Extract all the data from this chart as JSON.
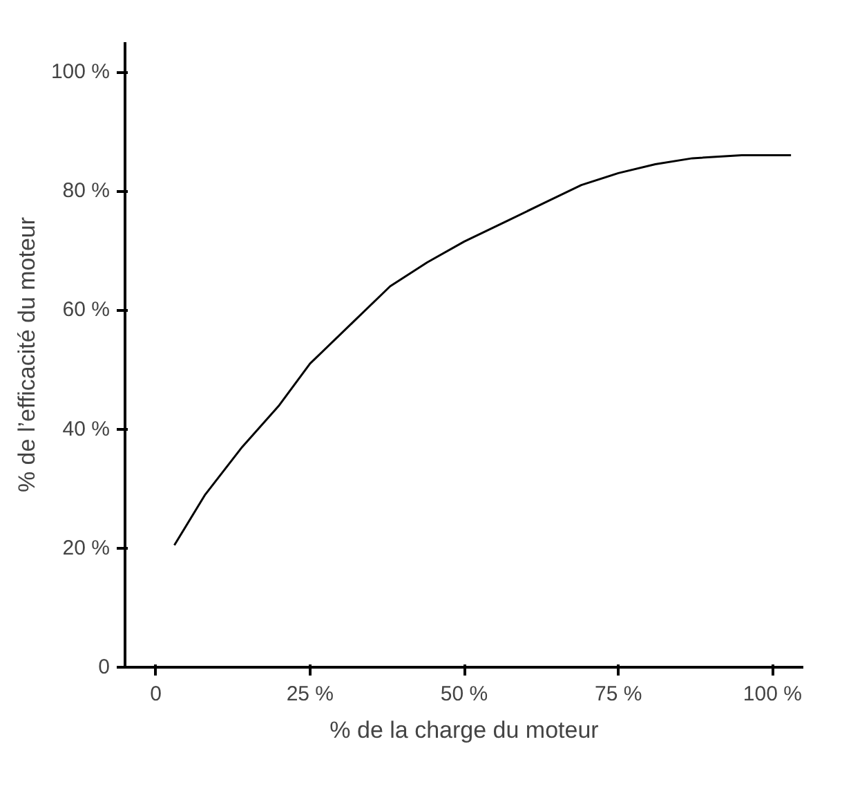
{
  "chart_data": {
    "type": "line",
    "xlabel": "% de la charge du moteur",
    "ylabel": "% de l’efficacité du moteur",
    "x": [
      3,
      8,
      14,
      20,
      25,
      32,
      38,
      44,
      50,
      57,
      63,
      69,
      75,
      81,
      87,
      95,
      103
    ],
    "series": [
      {
        "color": "#000000",
        "values": [
          20.5,
          29,
          37,
          44,
          51,
          58,
          64,
          68,
          71.5,
          75,
          78,
          81,
          83,
          84.5,
          85.5,
          86,
          86
        ]
      }
    ],
    "xlim": [
      -5,
      105
    ],
    "ylim": [
      0,
      105
    ],
    "xticks": [
      {
        "value": 0,
        "label": "0"
      },
      {
        "value": 25,
        "label": "25 %"
      },
      {
        "value": 50,
        "label": "50 %"
      },
      {
        "value": 75,
        "label": "75 %"
      },
      {
        "value": 100,
        "label": "100 %"
      }
    ],
    "yticks": [
      {
        "value": 0,
        "label": "0"
      },
      {
        "value": 20,
        "label": "20 %"
      },
      {
        "value": 40,
        "label": "40 %"
      },
      {
        "value": 60,
        "label": "60 %"
      },
      {
        "value": 80,
        "label": "80 %"
      },
      {
        "value": 100,
        "label": "100 %"
      }
    ],
    "grid": false,
    "marker": "none",
    "line_style": "solid"
  }
}
